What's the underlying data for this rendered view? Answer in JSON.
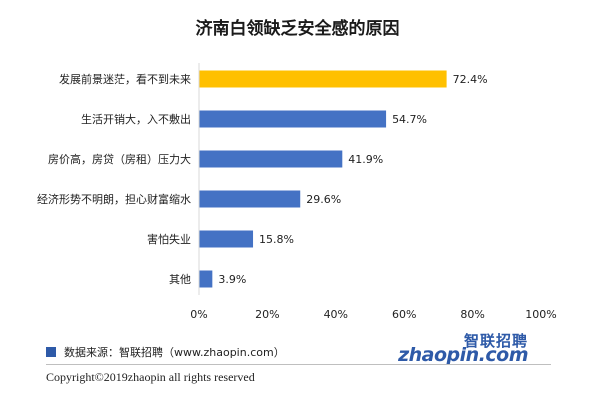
{
  "chart_data": {
    "type": "bar",
    "orientation": "horizontal",
    "title": "济南白领缺乏安全感的原因",
    "categories": [
      "发展前景迷茫，看不到未来",
      "生活开销大，入不敷出",
      "房价高，房贷（房租）压力大",
      "经济形势不明朗，担心财富缩水",
      "害怕失业",
      "其他"
    ],
    "values": [
      72.4,
      54.7,
      41.9,
      29.6,
      15.8,
      3.9
    ],
    "value_labels": [
      "72.4%",
      "54.7%",
      "41.9%",
      "29.6%",
      "15.8%",
      "3.9%"
    ],
    "highlight_index": 0,
    "colors": {
      "highlight": "#ffc000",
      "bar": "#4472c4"
    },
    "xlim": [
      0,
      100
    ],
    "x_ticks": [
      "0%",
      "20%",
      "40%",
      "60%",
      "80%",
      "100%"
    ],
    "grid": false
  },
  "source_text": "数据来源：智联招聘（www.zhaopin.com）",
  "copyright": "Copyright©2019zhaopin all rights reserved",
  "logo": {
    "cn": "智联招聘",
    "en": "zhaopin.com",
    "accent": "#f5a623",
    "brand": "#2e5aa8"
  }
}
